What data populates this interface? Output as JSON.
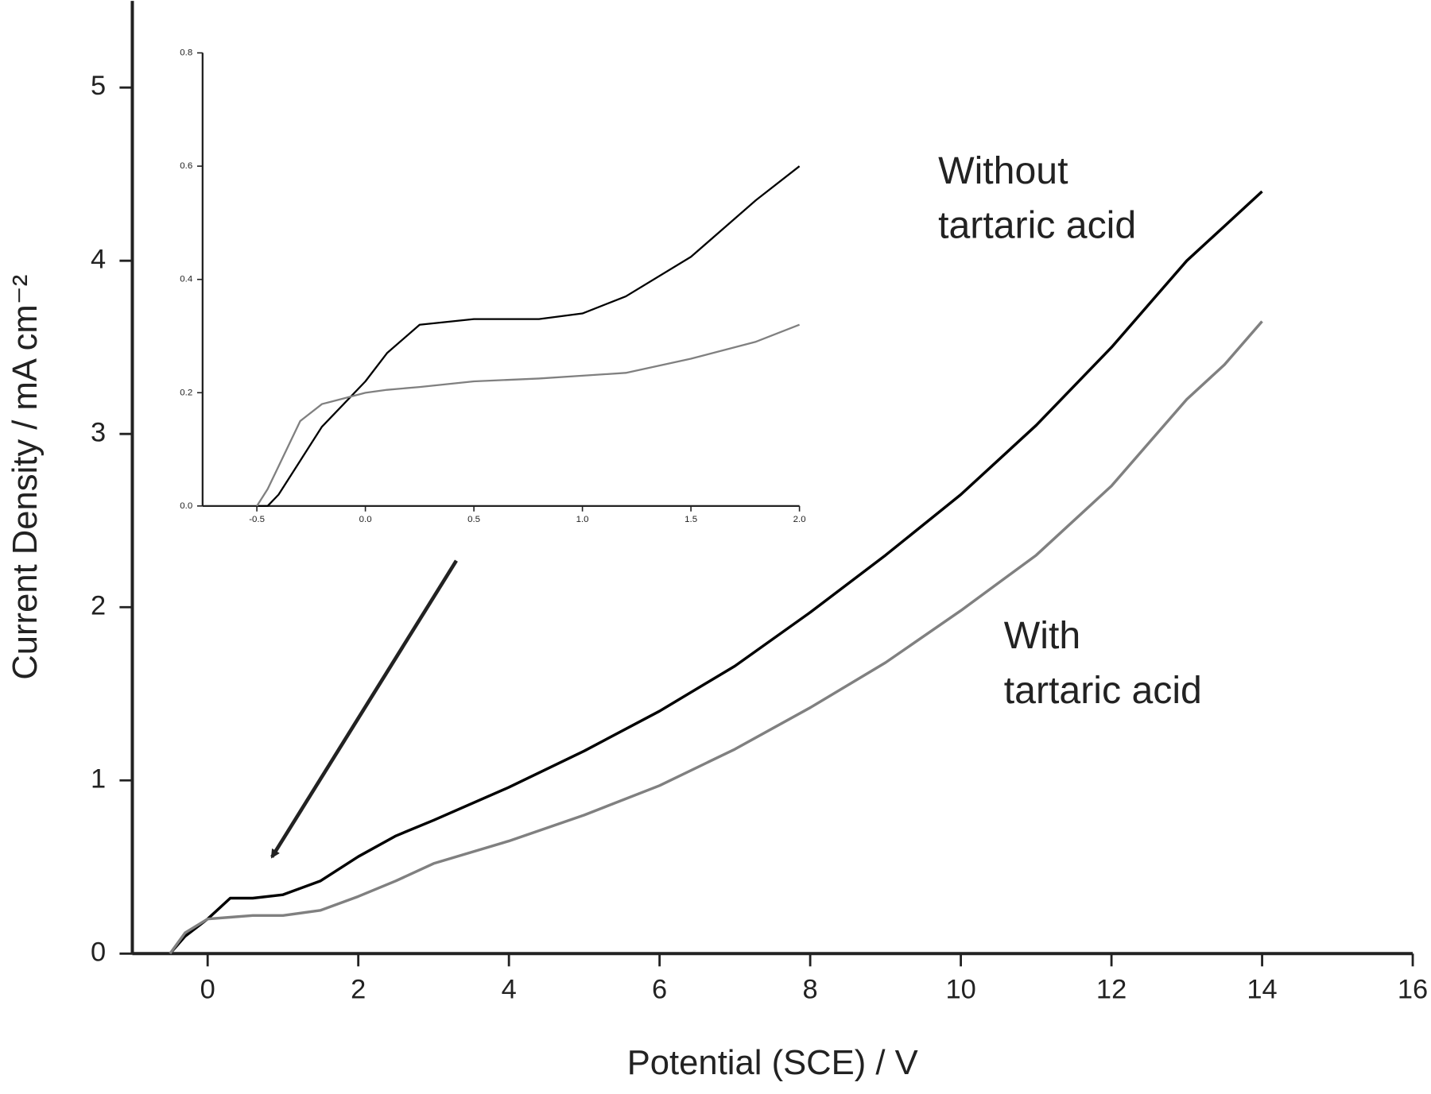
{
  "chart_data": [
    {
      "type": "line",
      "x_label": "Potential (SCE) / V",
      "y_label": "Current Density / mA cm⁻²",
      "xlim": [
        -1,
        16
      ],
      "ylim": [
        0,
        5.5
      ],
      "xticks": [
        0,
        2,
        4,
        6,
        8,
        10,
        12,
        14,
        16
      ],
      "yticks": [
        0,
        1,
        2,
        3,
        4,
        5
      ],
      "x": [
        -0.5,
        -0.3,
        0,
        0.3,
        0.6,
        1,
        1.5,
        2,
        2.5,
        3,
        4,
        5,
        6,
        7,
        8,
        9,
        10,
        11,
        12,
        12.5,
        13,
        13.5,
        14
      ],
      "series": [
        {
          "color": "#000000",
          "values": [
            0,
            0.1,
            0.2,
            0.32,
            0.32,
            0.34,
            0.42,
            0.56,
            0.68,
            0.77,
            0.96,
            1.17,
            1.4,
            1.66,
            1.97,
            2.3,
            2.65,
            3.05,
            3.5,
            3.75,
            4.0,
            4.2,
            4.4
          ]
        },
        {
          "color": "#808080",
          "values": [
            0,
            0.12,
            0.2,
            0.21,
            0.22,
            0.22,
            0.25,
            0.33,
            0.42,
            0.52,
            0.65,
            0.8,
            0.97,
            1.18,
            1.42,
            1.68,
            1.98,
            2.3,
            2.7,
            2.95,
            3.2,
            3.4,
            3.65
          ]
        }
      ],
      "annotations": [
        {
          "lines": [
            "Without",
            "tartaric acid"
          ]
        },
        {
          "lines": [
            "With",
            "tartaric acid"
          ]
        }
      ]
    },
    {
      "type": "line",
      "xlim": [
        -0.75,
        2.0
      ],
      "ylim": [
        0,
        0.8
      ],
      "xticks": [
        {
          "value": -0.5,
          "label": "-0.5"
        },
        {
          "value": 0,
          "label": "0.0"
        },
        {
          "value": 0.5,
          "label": "0.5"
        },
        {
          "value": 1,
          "label": "1.0"
        },
        {
          "value": 1.5,
          "label": "1.5"
        },
        {
          "value": 2,
          "label": "2.0"
        }
      ],
      "yticks": [
        {
          "value": 0,
          "label": "0.0"
        },
        {
          "value": 0.2,
          "label": "0.2"
        },
        {
          "value": 0.4,
          "label": "0.4"
        },
        {
          "value": 0.6,
          "label": "0.6"
        },
        {
          "value": 0.8,
          "label": "0.8"
        }
      ],
      "x": [
        -0.5,
        -0.45,
        -0.4,
        -0.3,
        -0.2,
        -0.1,
        0,
        0.1,
        0.25,
        0.5,
        0.8,
        1.0,
        1.2,
        1.5,
        1.8,
        2.0
      ],
      "series": [
        {
          "color": "#000000",
          "values": [
            0,
            0,
            0.02,
            0.08,
            0.14,
            0.18,
            0.22,
            0.27,
            0.32,
            0.33,
            0.33,
            0.34,
            0.37,
            0.44,
            0.54,
            0.6
          ]
        },
        {
          "color": "#808080",
          "values": [
            0,
            0.03,
            0.07,
            0.15,
            0.18,
            0.19,
            0.2,
            0.205,
            0.21,
            0.22,
            0.225,
            0.23,
            0.235,
            0.26,
            0.29,
            0.32
          ]
        }
      ]
    }
  ]
}
